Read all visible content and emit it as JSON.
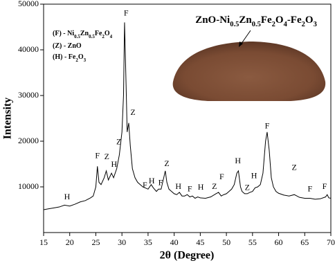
{
  "chart_data": {
    "type": "line",
    "inset_title": "ZnO-Ni0.5Zn0.5Fe2O4-Fe2O3",
    "legend_items": [
      "(F) - Ni0.5Zn0.5Fe2O4",
      "(Z) - ZnO",
      "(H) - Fe2O3"
    ],
    "x_label": "2θ (Degree)",
    "y_label": "Intensity",
    "color": "#000000",
    "x": [
      15,
      16,
      17,
      18,
      19,
      20,
      21,
      22,
      23,
      24,
      24.5,
      25,
      25.3,
      25.6,
      26,
      26.6,
      27,
      27.4,
      28,
      28.4,
      29,
      29.5,
      30,
      30.3,
      30.5,
      30.8,
      31,
      31.3,
      31.6,
      32,
      32.5,
      33,
      33.5,
      34,
      35,
      35.6,
      36,
      36.6,
      37,
      37.5,
      38,
      38.3,
      38.6,
      39,
      39.5,
      40,
      40.5,
      41,
      41.5,
      42,
      42.5,
      43,
      43.5,
      44,
      44.5,
      45,
      46,
      47,
      48,
      48.5,
      49,
      49.5,
      50,
      50.5,
      51,
      51.5,
      52,
      52.3,
      52.7,
      53,
      53.5,
      54,
      54.5,
      55,
      55.5,
      56,
      56.5,
      57,
      57.5,
      57.8,
      58.2,
      58.6,
      59,
      59.5,
      60,
      61,
      62,
      63,
      64,
      65,
      66,
      67,
      68,
      69,
      69.3,
      69.6,
      70
    ],
    "values": [
      5000,
      5200,
      5400,
      5600,
      6000,
      5800,
      6200,
      6700,
      7000,
      7600,
      8000,
      10000,
      14500,
      11000,
      10500,
      12000,
      13500,
      11500,
      13000,
      12000,
      14000,
      17000,
      22000,
      30000,
      46000,
      32000,
      22000,
      24000,
      19000,
      14000,
      12000,
      11000,
      10500,
      10000,
      9500,
      10500,
      9800,
      9000,
      9500,
      9500,
      12000,
      13500,
      11000,
      9500,
      9000,
      8500,
      8300,
      8800,
      8000,
      8000,
      8300,
      7800,
      8000,
      7500,
      7800,
      7600,
      7500,
      7800,
      8500,
      8800,
      8000,
      8300,
      8500,
      9000,
      9500,
      10500,
      13000,
      13500,
      10000,
      9000,
      8500,
      8500,
      8800,
      9000,
      9800,
      10000,
      10500,
      13000,
      20000,
      22000,
      18000,
      12000,
      10000,
      9000,
      8600,
      8200,
      8000,
      8300,
      7700,
      7500,
      7500,
      7300,
      7400,
      7800,
      8300,
      7600,
      7500
    ],
    "annotations": [
      {
        "text": "H",
        "x": 19.5,
        "y": 7700
      },
      {
        "text": "F",
        "x": 25.3,
        "y": 16700
      },
      {
        "text": "Z",
        "x": 27.1,
        "y": 16500
      },
      {
        "text": "H",
        "x": 28.5,
        "y": 14800
      },
      {
        "text": "Z",
        "x": 29.4,
        "y": 19700
      },
      {
        "text": "F",
        "x": 30.8,
        "y": 47900
      },
      {
        "text": "Z",
        "x": 32.1,
        "y": 26200
      },
      {
        "text": "F",
        "x": 34.4,
        "y": 10300
      },
      {
        "text": "H",
        "x": 35.7,
        "y": 11200
      },
      {
        "text": "F",
        "x": 37.4,
        "y": 10800
      },
      {
        "text": "Z",
        "x": 38.6,
        "y": 15000
      },
      {
        "text": "H",
        "x": 40.8,
        "y": 10000
      },
      {
        "text": "F",
        "x": 43.0,
        "y": 9400
      },
      {
        "text": "H",
        "x": 45.1,
        "y": 9800
      },
      {
        "text": "Z",
        "x": 47.7,
        "y": 10000
      },
      {
        "text": "F",
        "x": 49.1,
        "y": 12100
      },
      {
        "text": "H",
        "x": 52.2,
        "y": 15600
      },
      {
        "text": "Z",
        "x": 54.0,
        "y": 9700
      },
      {
        "text": "H",
        "x": 55.3,
        "y": 12300
      },
      {
        "text": "F",
        "x": 57.8,
        "y": 23200
      },
      {
        "text": "Z",
        "x": 63.0,
        "y": 14100
      },
      {
        "text": "F",
        "x": 66.0,
        "y": 9400
      },
      {
        "text": "F",
        "x": 68.8,
        "y": 10000
      }
    ],
    "xlim": [
      15,
      70
    ],
    "xticks": [
      15,
      20,
      25,
      30,
      35,
      40,
      45,
      50,
      55,
      60,
      65,
      70
    ],
    "ylim": [
      0,
      50000
    ],
    "yticks": [
      10000,
      20000,
      30000,
      40000,
      50000
    ]
  }
}
